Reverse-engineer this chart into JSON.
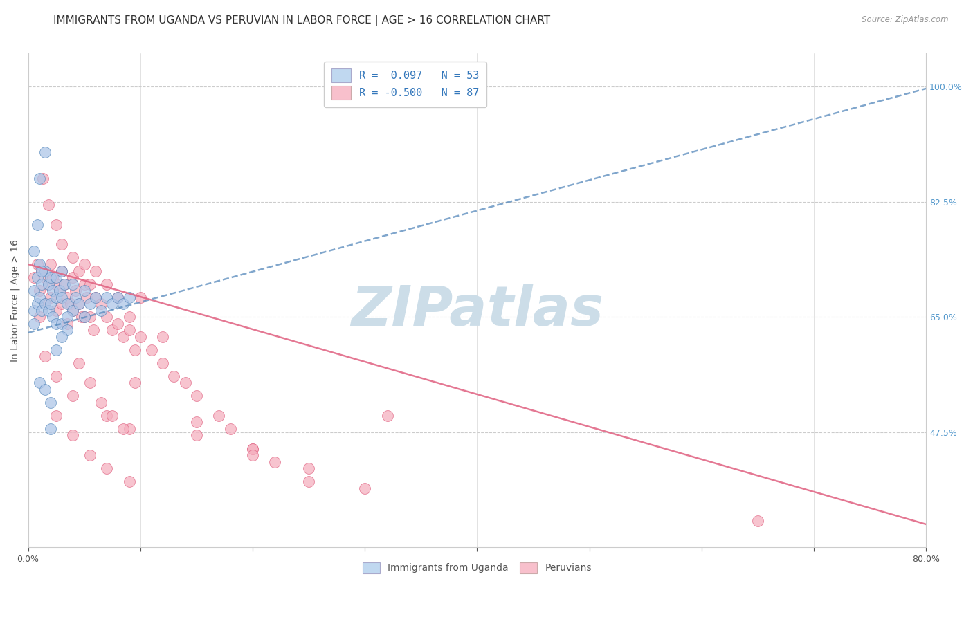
{
  "title": "IMMIGRANTS FROM UGANDA VS PERUVIAN IN LABOR FORCE | AGE > 16 CORRELATION CHART",
  "source": "Source: ZipAtlas.com",
  "ylabel": "In Labor Force | Age > 16",
  "xlim": [
    0.0,
    0.8
  ],
  "ylim": [
    0.3,
    1.05
  ],
  "xtick_positions": [
    0.0,
    0.1,
    0.2,
    0.3,
    0.4,
    0.5,
    0.6,
    0.7,
    0.8
  ],
  "xticklabels": [
    "0.0%",
    "",
    "",
    "",
    "",
    "",
    "",
    "",
    "80.0%"
  ],
  "yticks_right": [
    1.0,
    0.825,
    0.65,
    0.475
  ],
  "ytick_right_labels": [
    "100.0%",
    "82.5%",
    "65.0%",
    "47.5%"
  ],
  "R_uganda": 0.097,
  "N_uganda": 53,
  "R_peruvian": -0.5,
  "N_peruvian": 87,
  "blue_fill": "#aec6e8",
  "blue_edge": "#5588bb",
  "pink_fill": "#f5b0c0",
  "pink_edge": "#e06080",
  "legend_blue_face": "#c0d8f0",
  "legend_pink_face": "#f8c0cc",
  "watermark": "ZIPatlas",
  "watermark_color": "#ccdde8",
  "grid_color": "#cccccc",
  "title_fontsize": 11,
  "axis_label_fontsize": 10,
  "tick_fontsize": 9,
  "uganda_x": [
    0.005,
    0.005,
    0.008,
    0.008,
    0.01,
    0.01,
    0.012,
    0.012,
    0.015,
    0.015,
    0.018,
    0.018,
    0.02,
    0.02,
    0.022,
    0.022,
    0.025,
    0.025,
    0.025,
    0.028,
    0.03,
    0.03,
    0.03,
    0.032,
    0.035,
    0.035,
    0.04,
    0.04,
    0.042,
    0.045,
    0.05,
    0.05,
    0.055,
    0.06,
    0.065,
    0.07,
    0.075,
    0.08,
    0.085,
    0.09,
    0.01,
    0.015,
    0.02,
    0.025,
    0.03,
    0.035,
    0.005,
    0.01,
    0.015,
    0.02,
    0.005,
    0.008,
    0.012
  ],
  "uganda_y": [
    0.69,
    0.66,
    0.71,
    0.67,
    0.73,
    0.68,
    0.7,
    0.66,
    0.72,
    0.67,
    0.7,
    0.66,
    0.71,
    0.67,
    0.69,
    0.65,
    0.71,
    0.68,
    0.64,
    0.69,
    0.72,
    0.68,
    0.64,
    0.7,
    0.67,
    0.63,
    0.7,
    0.66,
    0.68,
    0.67,
    0.69,
    0.65,
    0.67,
    0.68,
    0.66,
    0.68,
    0.67,
    0.68,
    0.67,
    0.68,
    0.86,
    0.9,
    0.48,
    0.6,
    0.62,
    0.65,
    0.64,
    0.55,
    0.54,
    0.52,
    0.75,
    0.79,
    0.72
  ],
  "peruvian_x": [
    0.005,
    0.008,
    0.01,
    0.01,
    0.012,
    0.015,
    0.015,
    0.018,
    0.02,
    0.02,
    0.022,
    0.025,
    0.025,
    0.028,
    0.03,
    0.03,
    0.032,
    0.035,
    0.035,
    0.038,
    0.04,
    0.04,
    0.042,
    0.045,
    0.045,
    0.048,
    0.05,
    0.05,
    0.052,
    0.055,
    0.055,
    0.058,
    0.06,
    0.065,
    0.07,
    0.075,
    0.08,
    0.085,
    0.09,
    0.095,
    0.1,
    0.11,
    0.12,
    0.13,
    0.14,
    0.15,
    0.17,
    0.18,
    0.2,
    0.22,
    0.25,
    0.013,
    0.018,
    0.025,
    0.03,
    0.04,
    0.05,
    0.06,
    0.07,
    0.08,
    0.09,
    0.1,
    0.12,
    0.015,
    0.025,
    0.04,
    0.07,
    0.09,
    0.025,
    0.04,
    0.055,
    0.07,
    0.09,
    0.15,
    0.2,
    0.25,
    0.3,
    0.32,
    0.65,
    0.045,
    0.055,
    0.065,
    0.075,
    0.085,
    0.095,
    0.15,
    0.2
  ],
  "peruvian_y": [
    0.71,
    0.73,
    0.69,
    0.65,
    0.72,
    0.71,
    0.67,
    0.7,
    0.73,
    0.68,
    0.71,
    0.7,
    0.66,
    0.69,
    0.72,
    0.67,
    0.7,
    0.68,
    0.64,
    0.67,
    0.71,
    0.66,
    0.69,
    0.72,
    0.67,
    0.65,
    0.7,
    0.65,
    0.68,
    0.7,
    0.65,
    0.63,
    0.68,
    0.67,
    0.65,
    0.63,
    0.64,
    0.62,
    0.63,
    0.6,
    0.62,
    0.6,
    0.58,
    0.56,
    0.55,
    0.53,
    0.5,
    0.48,
    0.45,
    0.43,
    0.4,
    0.86,
    0.82,
    0.79,
    0.76,
    0.74,
    0.73,
    0.72,
    0.7,
    0.68,
    0.65,
    0.68,
    0.62,
    0.59,
    0.56,
    0.53,
    0.5,
    0.48,
    0.5,
    0.47,
    0.44,
    0.42,
    0.4,
    0.49,
    0.45,
    0.42,
    0.39,
    0.5,
    0.34,
    0.58,
    0.55,
    0.52,
    0.5,
    0.48,
    0.55,
    0.47,
    0.44
  ],
  "uganda_trend_x": [
    0.0,
    0.8
  ],
  "uganda_trend_y": [
    0.626,
    0.997
  ],
  "peruvian_trend_x": [
    0.0,
    0.8
  ],
  "peruvian_trend_y": [
    0.73,
    0.335
  ]
}
